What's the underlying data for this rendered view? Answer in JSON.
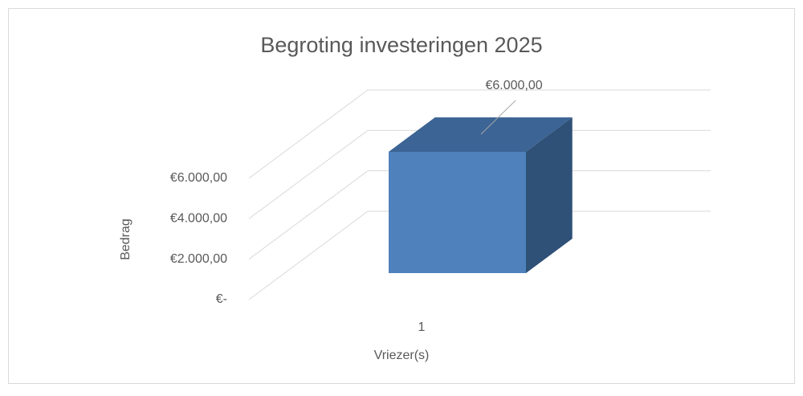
{
  "chart_data": {
    "type": "bar3d",
    "title": "Begroting investeringen 2025",
    "categories": [
      "1"
    ],
    "values": [
      6000
    ],
    "value_labels": [
      "€6.000,00"
    ],
    "color": "#4f81bd",
    "x_label": "Vriezer(s)",
    "y_label": "Bedrag",
    "ylim": [
      0,
      6000
    ],
    "yticks": [
      {
        "value": 0,
        "label": "€-"
      },
      {
        "value": 2000,
        "label": "€2.000,00"
      },
      {
        "value": 4000,
        "label": "€4.000,00"
      },
      {
        "value": 6000,
        "label": "€6.000,00"
      }
    ],
    "grid": true
  }
}
